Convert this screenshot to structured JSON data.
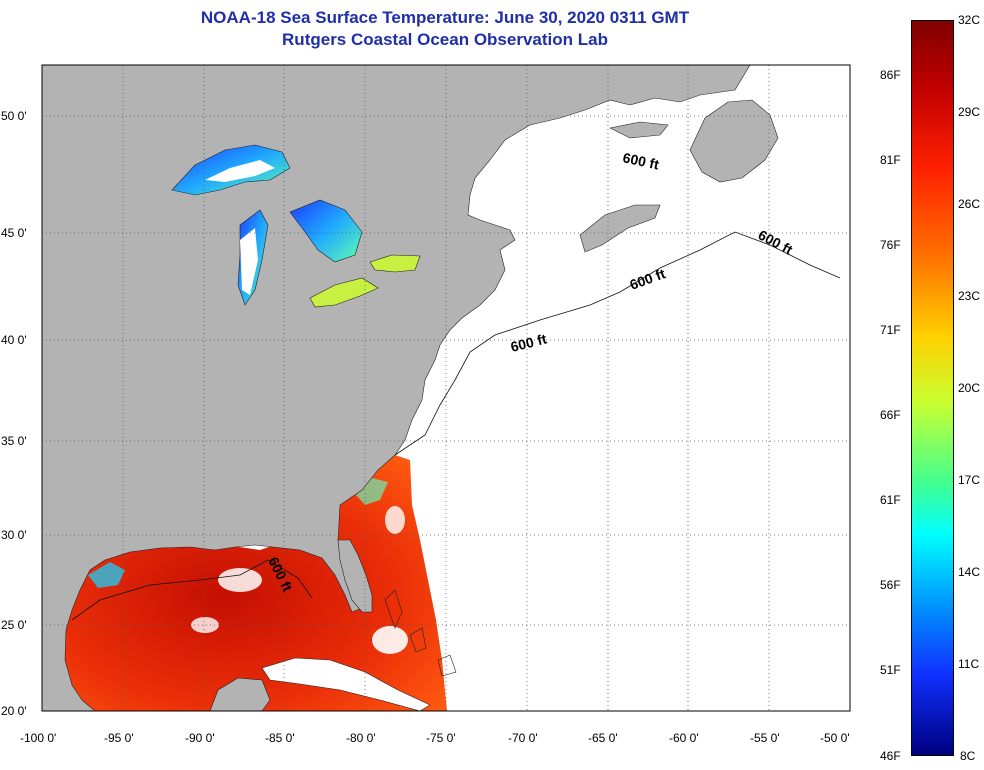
{
  "header": {
    "title": "NOAA-18 Sea Surface Temperature:  June 30, 2020 0311 GMT",
    "subtitle": "Rutgers Coastal Ocean Observation Lab"
  },
  "map": {
    "lat_labels": [
      "50 0'",
      "45 0'",
      "40 0'",
      "35 0'",
      "30 0'",
      "25 0'",
      "20 0'"
    ],
    "lon_labels": [
      "-100 0'",
      "-95 0'",
      "-90 0'",
      "-85 0'",
      "-80 0'",
      "-75 0'",
      "-70 0'",
      "-65 0'",
      "-60 0'",
      "-55 0'",
      "-50 0'"
    ],
    "contour_label": "600 ft",
    "colors": {
      "land": "#b3b3b3",
      "ocean_nodata": "#ffffff",
      "warm_sst": "#e82a08",
      "grid": "#555555"
    }
  },
  "legend": {
    "celsius_labels": [
      "32C",
      "29C",
      "26C",
      "23C",
      "20C",
      "17C",
      "14C",
      "11C",
      "8C"
    ],
    "fahrenheit_labels": [
      "86F",
      "81F",
      "76F",
      "71F",
      "66F",
      "61F",
      "56F",
      "51F",
      "46F"
    ],
    "range_celsius": [
      8,
      32
    ]
  }
}
